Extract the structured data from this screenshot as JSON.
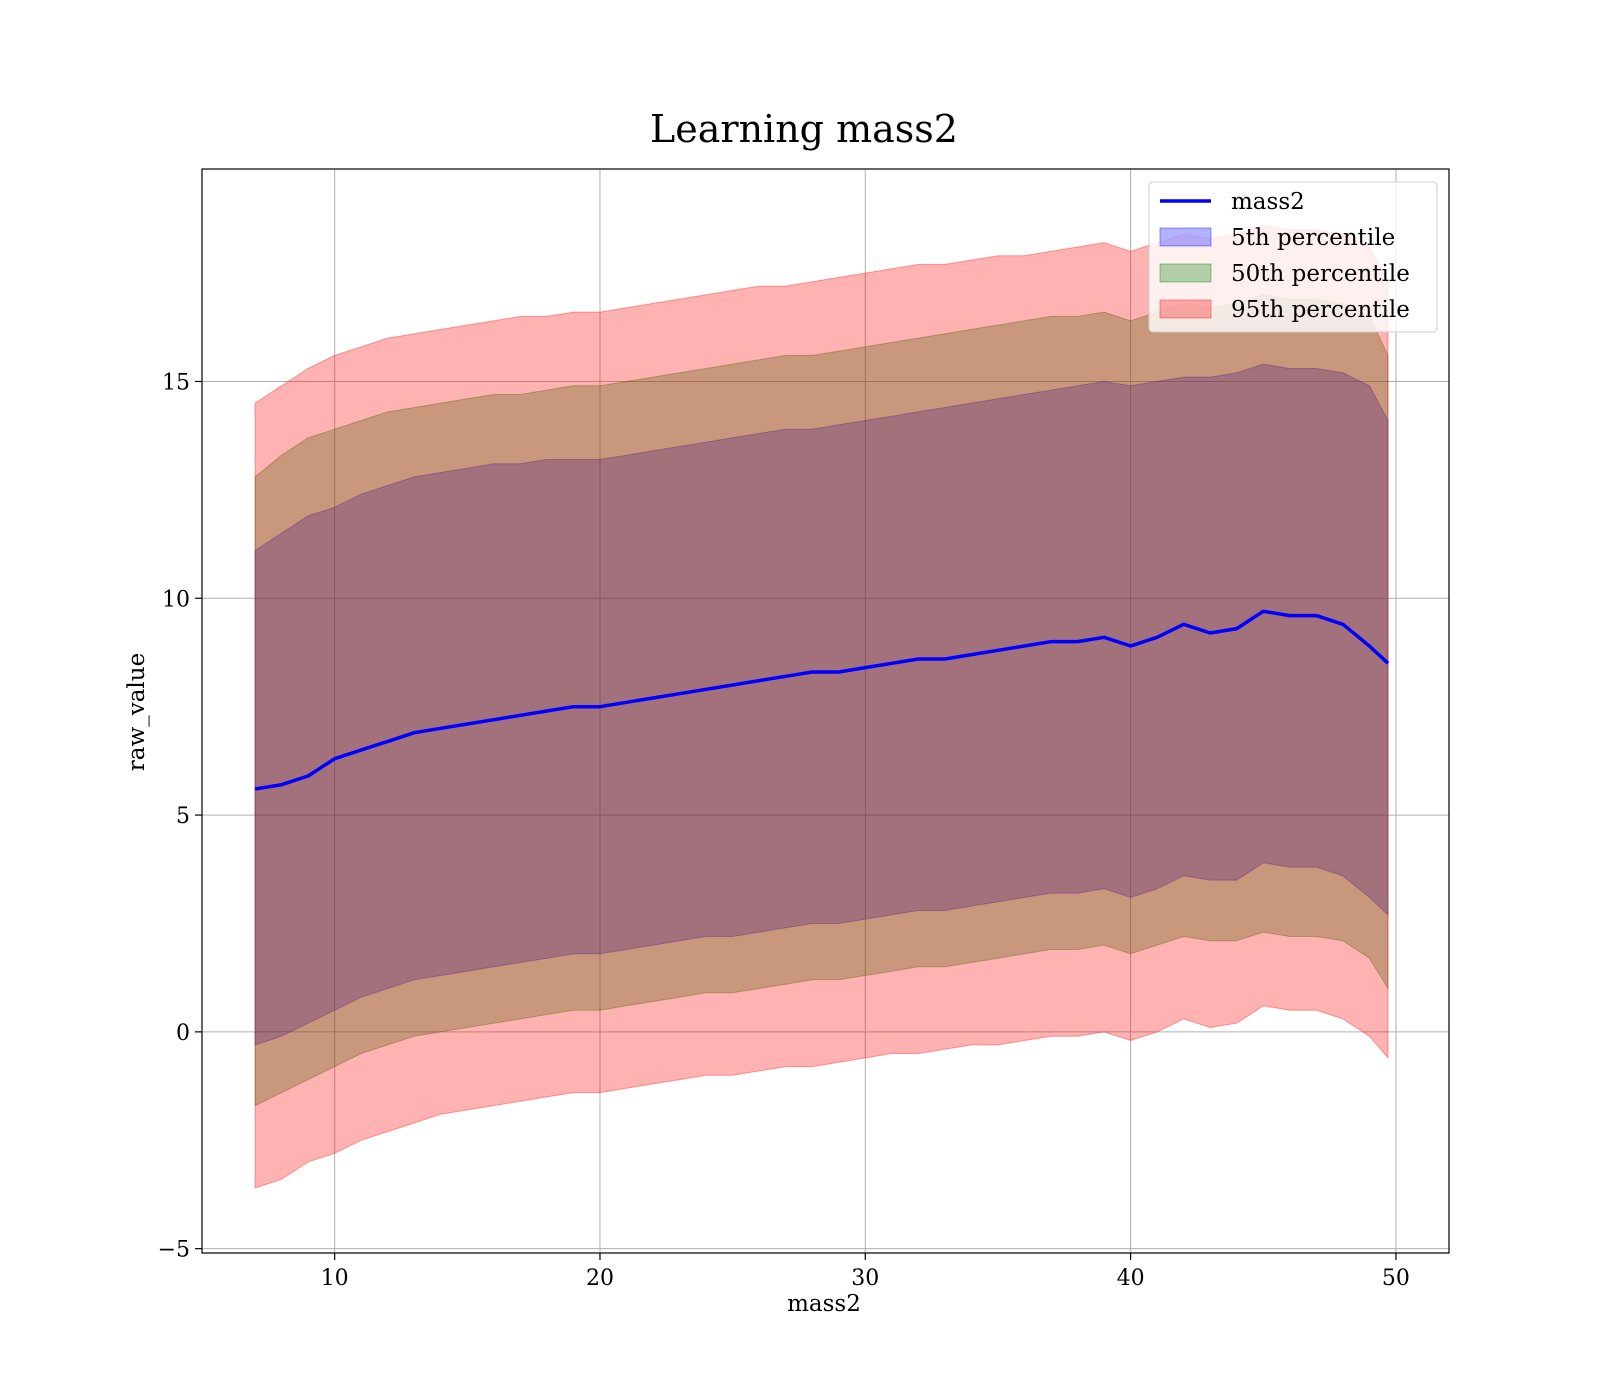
{
  "chart_data": {
    "type": "line",
    "title": "Learning mass2",
    "xlabel": "mass2",
    "ylabel": "raw_value",
    "xlim": [
      5,
      52
    ],
    "ylim": [
      -5.1,
      19.9
    ],
    "xticks": [
      10,
      20,
      30,
      40,
      50
    ],
    "yticks": [
      -5,
      0,
      5,
      10,
      15
    ],
    "grid": true,
    "legend_position": "upper right",
    "line": {
      "name": "mass2",
      "color": "#0000ff",
      "x": [
        7.0,
        8.0,
        9.0,
        10.0,
        11.0,
        12.0,
        13.0,
        14.0,
        15.0,
        16.0,
        17.0,
        18.0,
        19.0,
        20.0,
        21.0,
        22.0,
        23.0,
        24.0,
        25.0,
        26.0,
        27.0,
        28.0,
        29.0,
        30.0,
        31.0,
        32.0,
        33.0,
        34.0,
        35.0,
        36.0,
        37.0,
        38.0,
        39.0,
        40.0,
        41.0,
        42.0,
        43.0,
        44.0,
        45.0,
        46.0,
        47.0,
        48.0,
        49.0,
        49.7
      ],
      "y": [
        5.6,
        5.7,
        5.9,
        6.3,
        6.5,
        6.7,
        6.9,
        7.0,
        7.1,
        7.2,
        7.3,
        7.4,
        7.5,
        7.5,
        7.6,
        7.7,
        7.8,
        7.9,
        8.0,
        8.1,
        8.2,
        8.3,
        8.3,
        8.4,
        8.5,
        8.6,
        8.6,
        8.7,
        8.8,
        8.9,
        9.0,
        9.0,
        9.1,
        8.9,
        9.1,
        9.4,
        9.2,
        9.3,
        9.7,
        9.6,
        9.6,
        9.4,
        8.9,
        8.5
      ]
    },
    "bands": [
      {
        "name": "5th percentile",
        "color": "#0000ff",
        "upper": [
          11.1,
          11.5,
          11.9,
          12.1,
          12.4,
          12.6,
          12.8,
          12.9,
          13.0,
          13.1,
          13.1,
          13.2,
          13.2,
          13.2,
          13.3,
          13.4,
          13.5,
          13.6,
          13.7,
          13.8,
          13.9,
          13.9,
          14.0,
          14.1,
          14.2,
          14.3,
          14.4,
          14.5,
          14.6,
          14.7,
          14.8,
          14.9,
          15.0,
          14.9,
          15.0,
          15.1,
          15.1,
          15.2,
          15.4,
          15.3,
          15.3,
          15.2,
          14.9,
          14.1
        ],
        "lower": [
          -0.3,
          -0.1,
          0.2,
          0.5,
          0.8,
          1.0,
          1.2,
          1.3,
          1.4,
          1.5,
          1.6,
          1.7,
          1.8,
          1.8,
          1.9,
          2.0,
          2.1,
          2.2,
          2.2,
          2.3,
          2.4,
          2.5,
          2.5,
          2.6,
          2.7,
          2.8,
          2.8,
          2.9,
          3.0,
          3.1,
          3.2,
          3.2,
          3.3,
          3.1,
          3.3,
          3.6,
          3.5,
          3.5,
          3.9,
          3.8,
          3.8,
          3.6,
          3.1,
          2.7
        ]
      },
      {
        "name": "50th percentile",
        "color": "#008000",
        "upper": [
          12.8,
          13.3,
          13.7,
          13.9,
          14.1,
          14.3,
          14.4,
          14.5,
          14.6,
          14.7,
          14.7,
          14.8,
          14.9,
          14.9,
          15.0,
          15.1,
          15.2,
          15.3,
          15.4,
          15.5,
          15.6,
          15.6,
          15.7,
          15.8,
          15.9,
          16.0,
          16.1,
          16.2,
          16.3,
          16.4,
          16.5,
          16.5,
          16.6,
          16.4,
          16.6,
          16.8,
          16.7,
          16.8,
          17.0,
          16.9,
          16.9,
          16.8,
          16.5,
          15.6
        ],
        "lower": [
          -1.7,
          -1.4,
          -1.1,
          -0.8,
          -0.5,
          -0.3,
          -0.1,
          0.0,
          0.1,
          0.2,
          0.3,
          0.4,
          0.5,
          0.5,
          0.6,
          0.7,
          0.8,
          0.9,
          0.9,
          1.0,
          1.1,
          1.2,
          1.2,
          1.3,
          1.4,
          1.5,
          1.5,
          1.6,
          1.7,
          1.8,
          1.9,
          1.9,
          2.0,
          1.8,
          2.0,
          2.2,
          2.1,
          2.1,
          2.3,
          2.2,
          2.2,
          2.1,
          1.7,
          1.0
        ]
      },
      {
        "name": "95th percentile",
        "color": "#ff0000",
        "upper": [
          14.5,
          14.9,
          15.3,
          15.6,
          15.8,
          16.0,
          16.1,
          16.2,
          16.3,
          16.4,
          16.5,
          16.5,
          16.6,
          16.6,
          16.7,
          16.8,
          16.9,
          17.0,
          17.1,
          17.2,
          17.2,
          17.3,
          17.4,
          17.5,
          17.6,
          17.7,
          17.7,
          17.8,
          17.9,
          17.9,
          18.0,
          18.1,
          18.2,
          18.0,
          18.2,
          18.4,
          18.3,
          18.4,
          18.6,
          18.5,
          18.5,
          18.4,
          18.1,
          17.3
        ],
        "lower": [
          -3.6,
          -3.4,
          -3.0,
          -2.8,
          -2.5,
          -2.3,
          -2.1,
          -1.9,
          -1.8,
          -1.7,
          -1.6,
          -1.5,
          -1.4,
          -1.4,
          -1.3,
          -1.2,
          -1.1,
          -1.0,
          -1.0,
          -0.9,
          -0.8,
          -0.8,
          -0.7,
          -0.6,
          -0.5,
          -0.5,
          -0.4,
          -0.3,
          -0.3,
          -0.2,
          -0.1,
          -0.1,
          0.0,
          -0.2,
          0.0,
          0.3,
          0.1,
          0.2,
          0.6,
          0.5,
          0.5,
          0.3,
          -0.1,
          -0.6
        ]
      }
    ]
  }
}
